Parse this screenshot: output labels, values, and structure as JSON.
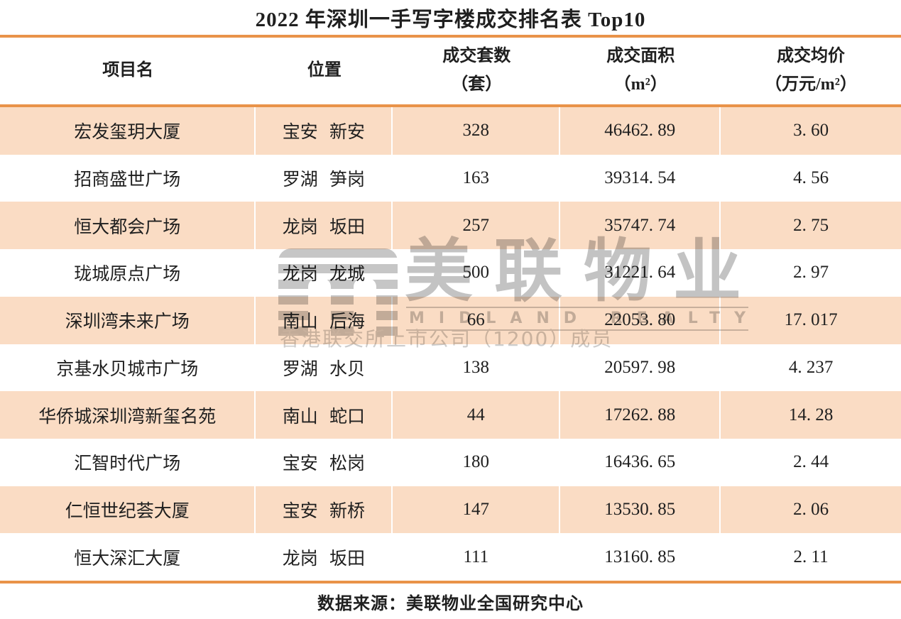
{
  "title": "2022 年深圳一手写字楼成交排名表 Top10",
  "table": {
    "columns": [
      {
        "line1": "项目名",
        "line2": ""
      },
      {
        "line1": "位置",
        "line2": ""
      },
      {
        "line1": "成交套数",
        "line2": "（套）"
      },
      {
        "line1": "成交面积",
        "line2": "（m²）"
      },
      {
        "line1": "成交均价",
        "line2": "（万元/m²）"
      }
    ],
    "rows": [
      {
        "project": "宏发玺玥大厦",
        "location": "宝安 新安",
        "units": "328",
        "area": "46462. 89",
        "price": "3. 60"
      },
      {
        "project": "招商盛世广场",
        "location": "罗湖 笋岗",
        "units": "163",
        "area": "39314. 54",
        "price": "4. 56"
      },
      {
        "project": "恒大都会广场",
        "location": "龙岗 坂田",
        "units": "257",
        "area": "35747. 74",
        "price": "2. 75"
      },
      {
        "project": "珑城原点广场",
        "location": "龙岗 龙城",
        "units": "500",
        "area": "31221. 64",
        "price": "2. 97"
      },
      {
        "project": "深圳湾未来广场",
        "location": "南山 后海",
        "units": "66",
        "area": "22053. 80",
        "price": "17. 017"
      },
      {
        "project": "京基水贝城市广场",
        "location": "罗湖 水贝",
        "units": "138",
        "area": "20597. 98",
        "price": "4. 237"
      },
      {
        "project": "华侨城深圳湾新玺名苑",
        "location": "南山 蛇口",
        "units": "44",
        "area": "17262. 88",
        "price": "14. 28"
      },
      {
        "project": "汇智时代广场",
        "location": "宝安 松岗",
        "units": "180",
        "area": "16436. 65",
        "price": "2. 44"
      },
      {
        "project": "仁恒世纪荟大厦",
        "location": "宝安 新桥",
        "units": "147",
        "area": "13530. 85",
        "price": "2. 06"
      },
      {
        "project": "恒大深汇大厦",
        "location": "龙岗 坂田",
        "units": "111",
        "area": "13160. 85",
        "price": "2. 11"
      }
    ]
  },
  "chart_data": {
    "type": "table",
    "title": "2022 年深圳一手写字楼成交排名表 Top10",
    "columns": [
      "项目名",
      "位置",
      "成交套数（套）",
      "成交面积（m²）",
      "成交均价（万元/m²）"
    ],
    "rows": [
      [
        "宏发玺玥大厦",
        "宝安 新安",
        328,
        46462.89,
        3.6
      ],
      [
        "招商盛世广场",
        "罗湖 笋岗",
        163,
        39314.54,
        4.56
      ],
      [
        "恒大都会广场",
        "龙岗 坂田",
        257,
        35747.74,
        2.75
      ],
      [
        "珑城原点广场",
        "龙岗 龙城",
        500,
        31221.64,
        2.97
      ],
      [
        "深圳湾未来广场",
        "南山 后海",
        66,
        22053.8,
        17.017
      ],
      [
        "京基水贝城市广场",
        "罗湖 水贝",
        138,
        20597.98,
        4.237
      ],
      [
        "华侨城深圳湾新玺名苑",
        "南山 蛇口",
        44,
        17262.88,
        14.28
      ],
      [
        "汇智时代广场",
        "宝安 松岗",
        180,
        16436.65,
        2.44
      ],
      [
        "仁恒世纪荟大厦",
        "宝安 新桥",
        147,
        13530.85,
        2.06
      ],
      [
        "恒大深汇大厦",
        "龙岗 坂田",
        111,
        13160.85,
        2.11
      ]
    ],
    "source_note": "数据来源：美联物业全国研究中心",
    "layout": {
      "striped_rows": "odd",
      "stripe_color": "#fadcc4",
      "divider_color": "#e99349"
    }
  },
  "watermark": {
    "brand_cn": "美联物业",
    "brand_en": "MIDLAND REALTY",
    "subtitle": "香港联交所上市公司（1200）成员",
    "logo": "midland-striped-m-logo"
  },
  "footer": {
    "source": "数据来源：美联物业全国研究中心"
  },
  "colors": {
    "row_stripe": "#fadcc4",
    "divider_orange": "#e99349",
    "text": "#1f1f1f",
    "watermark_gray": "#c6c6c6"
  }
}
